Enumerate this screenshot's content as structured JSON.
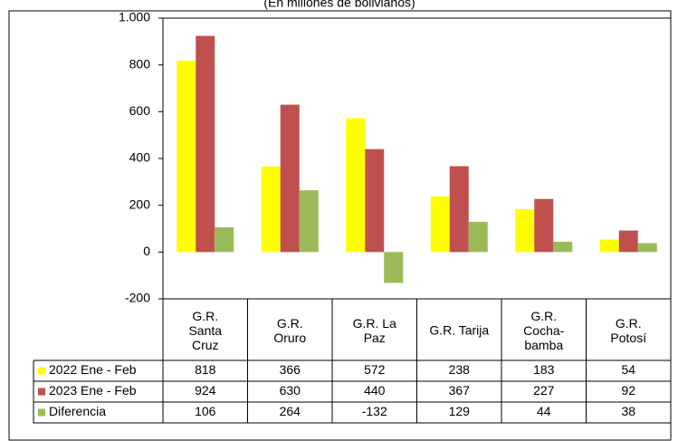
{
  "chart_data": {
    "type": "bar",
    "subtitle": "(En millones de bolivianos)",
    "categories": [
      "G.R.\nSanta\nCruz",
      "G.R.\nOruro",
      "G.R. La\nPaz",
      "G.R. Tarija",
      "G.R.\nCocha-\nbamba",
      "G.R.\nPotosí"
    ],
    "series": [
      {
        "name": "2022 Ene - Feb",
        "color": "#ffff00",
        "values": [
          818,
          366,
          572,
          238,
          183,
          54
        ]
      },
      {
        "name": "2023 Ene - Feb",
        "color": "#c0504d",
        "values": [
          924,
          630,
          440,
          367,
          227,
          92
        ]
      },
      {
        "name": "Diferencia",
        "color": "#9bbb59",
        "values": [
          106,
          264,
          -132,
          129,
          44,
          38
        ]
      }
    ],
    "ylim": [
      -200,
      1000
    ],
    "yticks": [
      -200,
      0,
      200,
      400,
      600,
      800,
      {
        "value": 1000,
        "label": "1.000"
      }
    ],
    "grid": false
  }
}
